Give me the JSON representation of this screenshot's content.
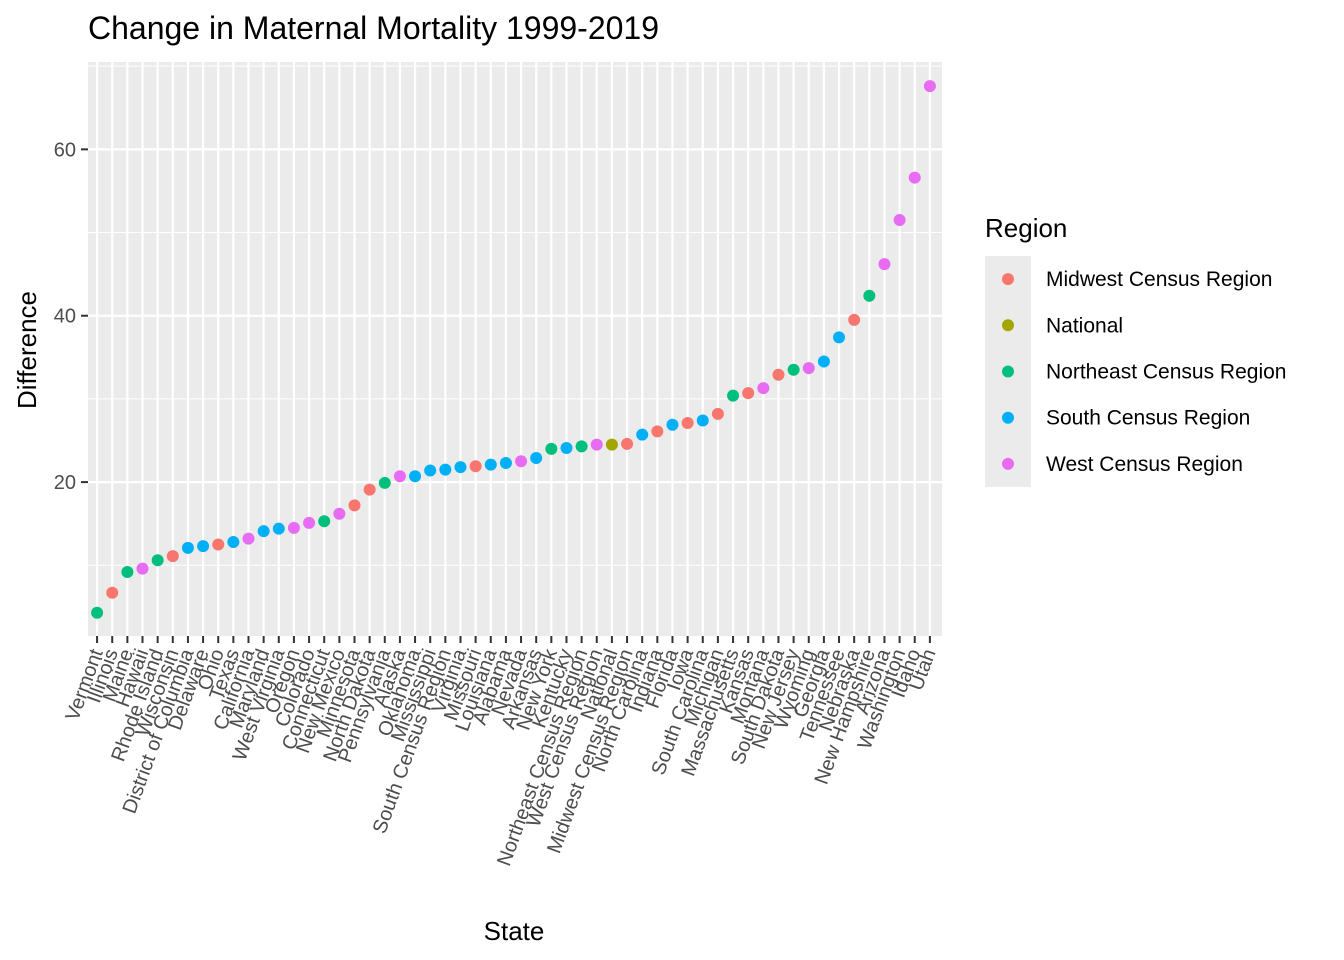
{
  "chart_data": {
    "type": "scatter",
    "title": "Change in Maternal Mortality 1999-2019",
    "xlabel": "State",
    "ylabel": "Difference",
    "ylim": [
      1.5,
      70.5
    ],
    "yticks": [
      20,
      40,
      60
    ],
    "grid": true,
    "legend": {
      "title": "Region",
      "placement": "right",
      "entries": [
        {
          "name": "Midwest Census Region",
          "color": "#F8766D"
        },
        {
          "name": "National",
          "color": "#A3A500"
        },
        {
          "name": "Northeast Census Region",
          "color": "#00BF7D"
        },
        {
          "name": "South Census Region",
          "color": "#00B0F6"
        },
        {
          "name": "West Census Region",
          "color": "#E76BF3"
        }
      ]
    },
    "points": [
      {
        "x": "Vermont",
        "y": 4.3,
        "region": "Northeast Census Region"
      },
      {
        "x": "Illinois",
        "y": 6.7,
        "region": "Midwest Census Region"
      },
      {
        "x": "Maine",
        "y": 9.2,
        "region": "Northeast Census Region"
      },
      {
        "x": "Hawaii",
        "y": 9.6,
        "region": "West Census Region"
      },
      {
        "x": "Rhode Island",
        "y": 10.6,
        "region": "Northeast Census Region"
      },
      {
        "x": "Wisconsin",
        "y": 11.1,
        "region": "Midwest Census Region"
      },
      {
        "x": "District of Columbia",
        "y": 12.1,
        "region": "South Census Region"
      },
      {
        "x": "Delaware",
        "y": 12.3,
        "region": "South Census Region"
      },
      {
        "x": "Ohio",
        "y": 12.5,
        "region": "Midwest Census Region"
      },
      {
        "x": "Texas",
        "y": 12.8,
        "region": "South Census Region"
      },
      {
        "x": "California",
        "y": 13.2,
        "region": "West Census Region"
      },
      {
        "x": "Maryland",
        "y": 14.1,
        "region": "South Census Region"
      },
      {
        "x": "West Virginia",
        "y": 14.4,
        "region": "South Census Region"
      },
      {
        "x": "Oregon",
        "y": 14.5,
        "region": "West Census Region"
      },
      {
        "x": "Colorado",
        "y": 15.1,
        "region": "West Census Region"
      },
      {
        "x": "Connecticut",
        "y": 15.3,
        "region": "Northeast Census Region"
      },
      {
        "x": "New Mexico",
        "y": 16.2,
        "region": "West Census Region"
      },
      {
        "x": "Minnesota",
        "y": 17.2,
        "region": "Midwest Census Region"
      },
      {
        "x": "North Dakota",
        "y": 19.1,
        "region": "Midwest Census Region"
      },
      {
        "x": "Pennsylvania",
        "y": 19.9,
        "region": "Northeast Census Region"
      },
      {
        "x": "Alaska",
        "y": 20.7,
        "region": "West Census Region"
      },
      {
        "x": "Oklahoma",
        "y": 20.7,
        "region": "South Census Region"
      },
      {
        "x": "Mississippi",
        "y": 21.4,
        "region": "South Census Region"
      },
      {
        "x": "South Census Region",
        "y": 21.5,
        "region": "South Census Region"
      },
      {
        "x": "Virginia",
        "y": 21.8,
        "region": "South Census Region"
      },
      {
        "x": "Missouri",
        "y": 21.9,
        "region": "Midwest Census Region"
      },
      {
        "x": "Louisiana",
        "y": 22.1,
        "region": "South Census Region"
      },
      {
        "x": "Alabama",
        "y": 22.3,
        "region": "South Census Region"
      },
      {
        "x": "Nevada",
        "y": 22.5,
        "region": "West Census Region"
      },
      {
        "x": "Arkansas",
        "y": 22.9,
        "region": "South Census Region"
      },
      {
        "x": "New York",
        "y": 24.0,
        "region": "Northeast Census Region"
      },
      {
        "x": "Kentucky",
        "y": 24.1,
        "region": "South Census Region"
      },
      {
        "x": "Northeast Census Region",
        "y": 24.3,
        "region": "Northeast Census Region"
      },
      {
        "x": "West Census Region",
        "y": 24.5,
        "region": "West Census Region"
      },
      {
        "x": "National",
        "y": 24.5,
        "region": "National"
      },
      {
        "x": "Midwest Census Region",
        "y": 24.6,
        "region": "Midwest Census Region"
      },
      {
        "x": "North Carolina",
        "y": 25.7,
        "region": "South Census Region"
      },
      {
        "x": "Indiana",
        "y": 26.1,
        "region": "Midwest Census Region"
      },
      {
        "x": "Florida",
        "y": 26.9,
        "region": "South Census Region"
      },
      {
        "x": "Iowa",
        "y": 27.1,
        "region": "Midwest Census Region"
      },
      {
        "x": "South Carolina",
        "y": 27.4,
        "region": "South Census Region"
      },
      {
        "x": "Michigan",
        "y": 28.2,
        "region": "Midwest Census Region"
      },
      {
        "x": "Massachusetts",
        "y": 30.4,
        "region": "Northeast Census Region"
      },
      {
        "x": "Kansas",
        "y": 30.7,
        "region": "Midwest Census Region"
      },
      {
        "x": "Montana",
        "y": 31.3,
        "region": "West Census Region"
      },
      {
        "x": "South Dakota",
        "y": 32.9,
        "region": "Midwest Census Region"
      },
      {
        "x": "New Jersey",
        "y": 33.5,
        "region": "Northeast Census Region"
      },
      {
        "x": "Wyoming",
        "y": 33.7,
        "region": "West Census Region"
      },
      {
        "x": "Georgia",
        "y": 34.5,
        "region": "South Census Region"
      },
      {
        "x": "Tennessee",
        "y": 37.4,
        "region": "South Census Region"
      },
      {
        "x": "Nebraska",
        "y": 39.5,
        "region": "Midwest Census Region"
      },
      {
        "x": "New Hampshire",
        "y": 42.4,
        "region": "Northeast Census Region"
      },
      {
        "x": "Arizona",
        "y": 46.2,
        "region": "West Census Region"
      },
      {
        "x": "Washington",
        "y": 51.5,
        "region": "West Census Region"
      },
      {
        "x": "Idaho",
        "y": 56.6,
        "region": "West Census Region"
      },
      {
        "x": "Utah",
        "y": 67.6,
        "region": "West Census Region"
      }
    ]
  }
}
